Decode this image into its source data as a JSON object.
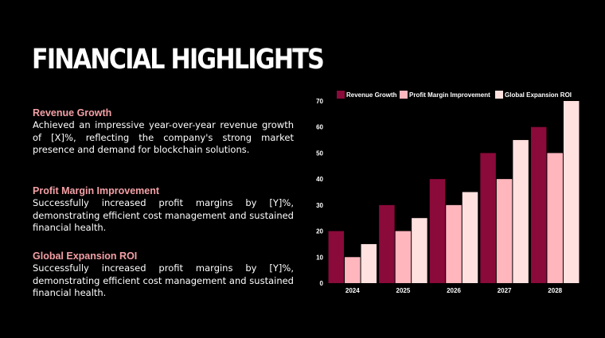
{
  "title": "FINANCIAL HIGHLIGHTS",
  "colors": {
    "background": "#000000",
    "heading": "#f4a0a6",
    "series": [
      "#8a0a3a",
      "#ffb6bd",
      "#ffe1df"
    ]
  },
  "highlights": [
    {
      "heading": "Revenue Growth",
      "body": "Achieved an impressive year-over-year revenue growth of [X]%, reflecting the company's strong market presence and demand for blockchain solutions."
    },
    {
      "heading": "Profit Margin Improvement",
      "body": "Successfully increased profit margins by [Y]%, demonstrating efficient cost management and sustained financial health."
    },
    {
      "heading": "Global Expansion ROI",
      "body": "Successfully increased profit margins by [Y]%, demonstrating efficient cost management and sustained financial health."
    }
  ],
  "chart_data": {
    "type": "bar",
    "categories": [
      "2024",
      "2025",
      "2026",
      "2027",
      "2028"
    ],
    "series": [
      {
        "name": "Revenue Growth",
        "values": [
          20,
          30,
          40,
          50,
          60
        ]
      },
      {
        "name": "Profit Margin Improvement",
        "values": [
          10,
          20,
          30,
          40,
          50
        ]
      },
      {
        "name": "Global Expansion ROI",
        "values": [
          15,
          25,
          35,
          55,
          70
        ]
      }
    ],
    "ylim": [
      0,
      70
    ],
    "yticks": [
      0,
      10,
      20,
      30,
      40,
      50,
      60,
      70
    ],
    "grid": false,
    "legend": "top",
    "xlabel": "",
    "ylabel": ""
  }
}
